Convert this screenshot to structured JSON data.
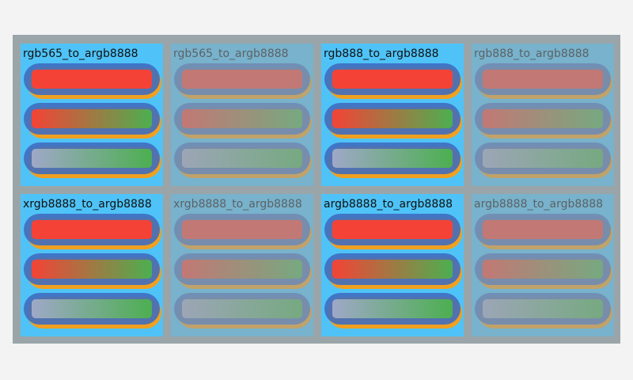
{
  "panels": [
    {
      "label": "rgb565_to_argb8888"
    },
    {
      "label": "rgb565_to_argb8888"
    },
    {
      "label": "rgb888_to_argb8888"
    },
    {
      "label": "rgb888_to_argb8888"
    },
    {
      "label": "xrgb8888_to_argb8888"
    },
    {
      "label": "xrgb8888_to_argb8888"
    },
    {
      "label": "argb8888_to_argb8888"
    },
    {
      "label": "argb8888_to_argb8888"
    }
  ]
}
